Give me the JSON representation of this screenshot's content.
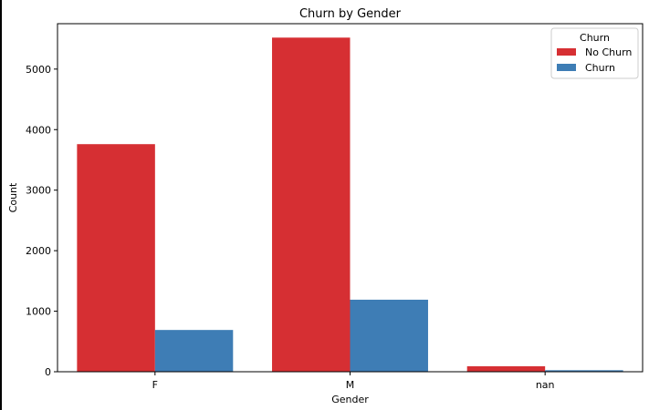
{
  "chart_data": {
    "type": "bar",
    "title": "Churn by Gender",
    "xlabel": "Gender",
    "ylabel": "Count",
    "categories": [
      "F",
      "M",
      "nan"
    ],
    "series": [
      {
        "name": "No Churn",
        "values": [
          3760,
          5520,
          90
        ],
        "color": "#d62f33"
      },
      {
        "name": "Churn",
        "values": [
          690,
          1190,
          25
        ],
        "color": "#3e7db5"
      }
    ],
    "ylim": [
      0,
      5750
    ],
    "yticks": [
      0,
      1000,
      2000,
      3000,
      4000,
      5000
    ],
    "grid": false,
    "legend": {
      "title": "Churn",
      "placement": "top-right"
    }
  }
}
